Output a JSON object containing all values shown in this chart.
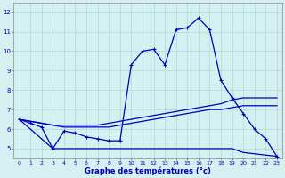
{
  "xlabel": "Graphe des températures (°c)",
  "xlim": [
    -0.5,
    23.5
  ],
  "ylim": [
    4.5,
    12.5
  ],
  "yticks": [
    5,
    6,
    7,
    8,
    9,
    10,
    11,
    12
  ],
  "xticks": [
    0,
    1,
    2,
    3,
    4,
    5,
    6,
    7,
    8,
    9,
    10,
    11,
    12,
    13,
    14,
    15,
    16,
    17,
    18,
    19,
    20,
    21,
    22,
    23
  ],
  "background_color": "#d4f0f0",
  "line_color": "#0000bb",
  "grid_color": "#b0d8d8",
  "line1_x": [
    0,
    1,
    2,
    3,
    4,
    5,
    6,
    7,
    8,
    9,
    10,
    11,
    12,
    13,
    14,
    15,
    16,
    17,
    18,
    19,
    20,
    21,
    22,
    23
  ],
  "line1_y": [
    6.5,
    6.3,
    6.1,
    5.0,
    5.9,
    5.8,
    5.6,
    5.5,
    5.4,
    5.4,
    9.3,
    10.0,
    10.1,
    9.3,
    11.1,
    11.2,
    11.7,
    11.1,
    8.5,
    7.6,
    6.8,
    6.0,
    5.5,
    4.6
  ],
  "line2_x": [
    0,
    1,
    2,
    3,
    4,
    5,
    6,
    7,
    8,
    9,
    10,
    11,
    12,
    13,
    14,
    15,
    16,
    17,
    18,
    19,
    20,
    21,
    22,
    23
  ],
  "line2_y": [
    6.5,
    6.4,
    6.3,
    6.2,
    6.2,
    6.2,
    6.2,
    6.2,
    6.3,
    6.4,
    6.5,
    6.6,
    6.7,
    6.8,
    6.9,
    7.0,
    7.1,
    7.2,
    7.3,
    7.5,
    7.6,
    7.6,
    7.6,
    7.6
  ],
  "line3_x": [
    0,
    1,
    2,
    3,
    4,
    5,
    6,
    7,
    8,
    9,
    10,
    11,
    12,
    13,
    14,
    15,
    16,
    17,
    18,
    19,
    20,
    21,
    22,
    23
  ],
  "line3_y": [
    6.5,
    6.4,
    6.3,
    6.2,
    6.1,
    6.1,
    6.1,
    6.1,
    6.1,
    6.2,
    6.3,
    6.4,
    6.5,
    6.6,
    6.7,
    6.8,
    6.9,
    7.0,
    7.0,
    7.1,
    7.2,
    7.2,
    7.2,
    7.2
  ],
  "line4_x": [
    0,
    3,
    4,
    9,
    10,
    19,
    20,
    23
  ],
  "line4_y": [
    6.5,
    5.0,
    5.0,
    5.0,
    5.0,
    5.0,
    4.8,
    4.6
  ]
}
